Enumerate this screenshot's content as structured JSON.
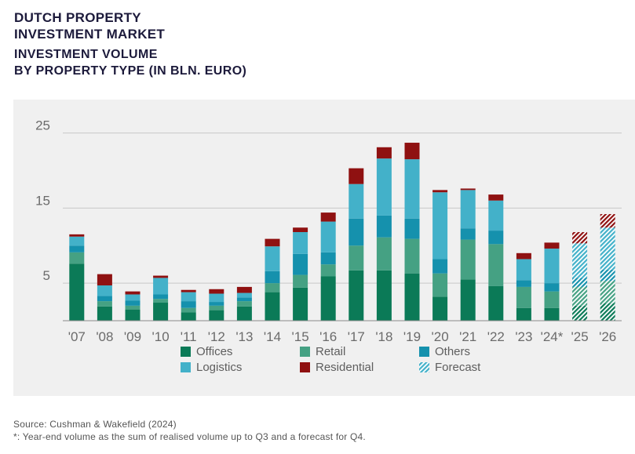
{
  "header": {
    "title_line1": "DUTCH PROPERTY",
    "title_line2": "INVESTMENT MARKET",
    "subtitle_line1": "INVESTMENT VOLUME",
    "subtitle_line2": "BY PROPERTY TYPE (IN BLN. EURO)"
  },
  "footer": {
    "source": "Source: Cushman & Wakefield (2024)",
    "note": "*: Year-end volume as the sum of realised volume up to Q3 and a forecast for Q4."
  },
  "colors": {
    "Offices": "#0b7a57",
    "Retail": "#45a183",
    "Others": "#1591ad",
    "Logistics": "#43b1c9",
    "Residential": "#8f1111"
  },
  "chart_data": {
    "type": "bar",
    "stacked": true,
    "categories": [
      "'07",
      "'08",
      "'09",
      "'10",
      "'11",
      "'12",
      "'13",
      "'14",
      "'15",
      "'16",
      "'17",
      "'18",
      "'19",
      "'20",
      "'21",
      "'22",
      "'23",
      "'24*",
      "'25",
      "'26"
    ],
    "forecast_categories": [
      "'25",
      "'26"
    ],
    "series": [
      {
        "name": "Offices",
        "values": [
          7.6,
          1.9,
          1.5,
          2.4,
          1.1,
          1.4,
          1.9,
          3.8,
          4.4,
          5.9,
          6.7,
          6.7,
          6.3,
          3.2,
          5.5,
          4.6,
          1.7,
          1.7,
          2.0,
          2.3
        ]
      },
      {
        "name": "Retail",
        "values": [
          1.5,
          0.7,
          0.5,
          0.5,
          0.6,
          0.6,
          0.7,
          1.2,
          1.7,
          1.6,
          3.3,
          4.4,
          4.6,
          3.1,
          5.3,
          5.6,
          2.8,
          2.2,
          2.5,
          3.0
        ]
      },
      {
        "name": "Others",
        "values": [
          0.9,
          0.7,
          0.7,
          0.6,
          0.9,
          0.5,
          0.5,
          1.6,
          2.8,
          1.6,
          3.6,
          2.9,
          2.7,
          1.9,
          1.5,
          1.8,
          0.9,
          1.1,
          1.2,
          1.5
        ]
      },
      {
        "name": "Logistics",
        "values": [
          1.2,
          1.4,
          0.8,
          2.2,
          1.2,
          1.1,
          0.6,
          3.3,
          2.9,
          4.1,
          4.6,
          7.6,
          7.9,
          8.9,
          5.1,
          4.0,
          2.8,
          4.6,
          4.6,
          5.6
        ]
      },
      {
        "name": "Residential",
        "values": [
          0.3,
          1.5,
          0.4,
          0.3,
          0.3,
          0.6,
          0.8,
          1.0,
          0.6,
          1.2,
          2.1,
          1.5,
          2.2,
          0.3,
          0.2,
          0.8,
          0.8,
          0.8,
          1.5,
          1.8
        ]
      }
    ],
    "yticks": [
      5,
      15,
      25
    ],
    "ylim": [
      0,
      26
    ],
    "grid": true,
    "legend_position": "bottom",
    "legend": [
      "Offices",
      "Retail",
      "Others",
      "Logistics",
      "Residential",
      "Forecast"
    ]
  }
}
